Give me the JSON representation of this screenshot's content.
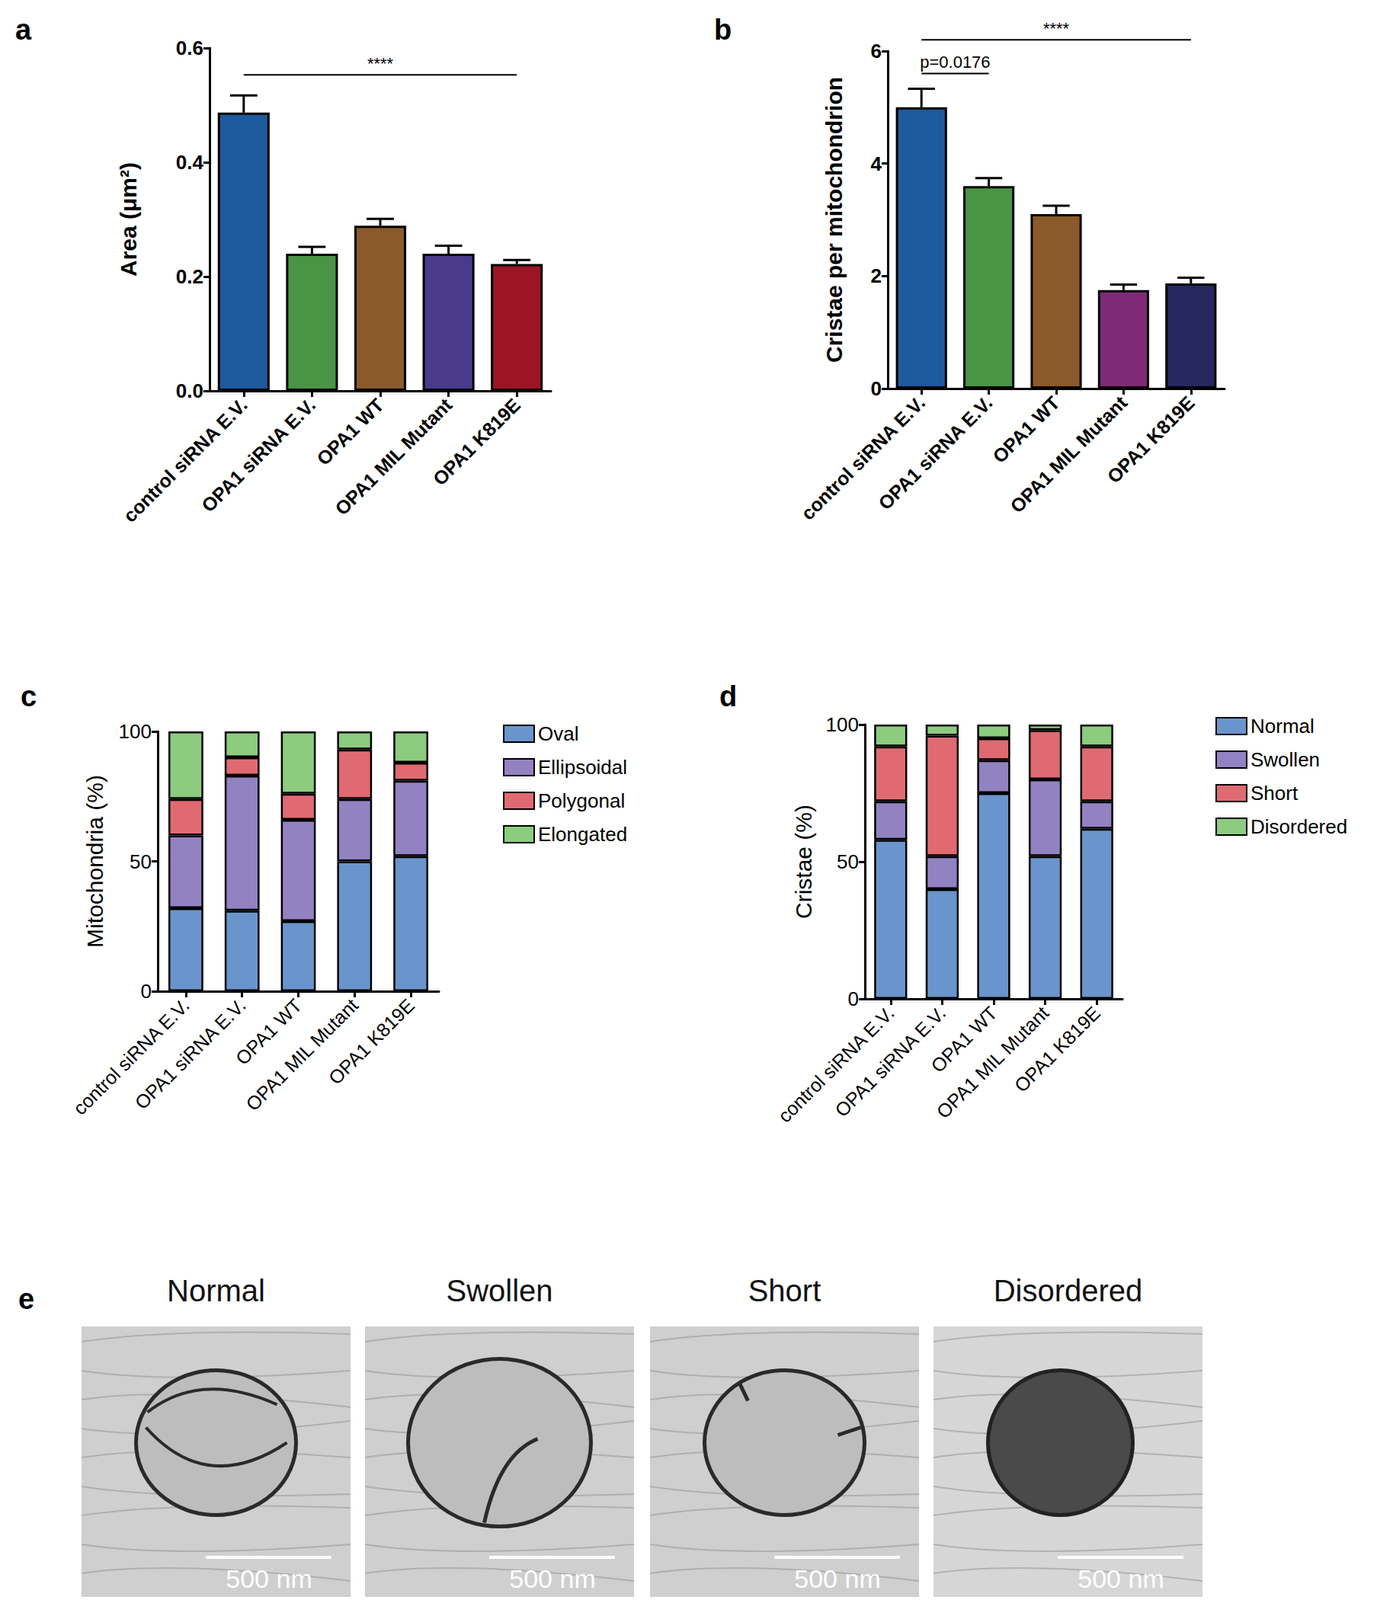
{
  "chart_data": [
    {
      "panel": "a",
      "type": "bar",
      "categories": [
        "control siRNA E.V.",
        "OPA1 siRNA E.V.",
        "OPA1 WT",
        "OPA1 MIL Mutant",
        "OPA1 K819E"
      ],
      "values": [
        0.487,
        0.24,
        0.289,
        0.24,
        0.222
      ],
      "errors": [
        0.03,
        0.012,
        0.012,
        0.014,
        0.007
      ],
      "colors": [
        "#1f5a9e",
        "#4a9445",
        "#8b5a2b",
        "#4a3a8c",
        "#9c1525"
      ],
      "ylabel": "Area (μm²)",
      "ylim": [
        0,
        0.6
      ],
      "yticks": [
        {
          "value": 0,
          "label": "0.0"
        },
        0.2,
        0.4,
        0.6
      ],
      "annotations": [
        {
          "text": "****",
          "from": "control siRNA E.V.",
          "to": "OPA1 K819E",
          "y": 0.553
        }
      ]
    },
    {
      "panel": "b",
      "type": "bar",
      "categories": [
        "control siRNA E.V.",
        "OPA1 siRNA E.V.",
        "OPA1 WT",
        "OPA1 MIL Mutant",
        "OPA1 K819E"
      ],
      "values": [
        5.0,
        3.6,
        3.1,
        1.75,
        1.87
      ],
      "errors": [
        0.33,
        0.14,
        0.15,
        0.1,
        0.1
      ],
      "colors": [
        "#1f5a9e",
        "#4a9445",
        "#8b5a2b",
        "#7f2a78",
        "#27285e"
      ],
      "ylabel": "Cristae per mitochondrion",
      "ylim": [
        0,
        6
      ],
      "yticks": [
        0,
        2,
        4,
        6
      ],
      "annotations": [
        {
          "text": "p=0.0176",
          "from": "control siRNA E.V.",
          "to": "OPA1 siRNA E.V.",
          "y": 5.6
        },
        {
          "text": "****",
          "from": "control siRNA E.V.",
          "to": "OPA1 K819E",
          "y": 6.2
        }
      ]
    },
    {
      "panel": "c",
      "type": "bar",
      "stacked": true,
      "legend": "right",
      "categories": [
        "control siRNA E.V.",
        "OPA1 siRNA E.V.",
        "OPA1 WT",
        "OPA1 MIL Mutant",
        "OPA1 K819E"
      ],
      "series": [
        {
          "name": "Oval",
          "color": "#6a95cc",
          "values": [
            32,
            31,
            27,
            50,
            52
          ]
        },
        {
          "name": "Ellipsoidal",
          "color": "#9282c2",
          "values": [
            28,
            52,
            39,
            24,
            29
          ]
        },
        {
          "name": "Polygonal",
          "color": "#e06a72",
          "values": [
            14,
            7,
            10,
            19,
            7
          ]
        },
        {
          "name": "Elongated",
          "color": "#8ccc7e",
          "values": [
            26,
            10,
            24,
            7,
            12
          ]
        }
      ],
      "ylabel": "Mitochondria (%)",
      "ylim": [
        0,
        100
      ],
      "yticks": [
        0,
        50,
        100
      ]
    },
    {
      "panel": "d",
      "type": "bar",
      "stacked": true,
      "legend": "right",
      "categories": [
        "control siRNA E.V.",
        "OPA1 siRNA E.V.",
        "OPA1 WT",
        "OPA1 MIL Mutant",
        "OPA1 K819E"
      ],
      "series": [
        {
          "name": "Normal",
          "color": "#6a95cc",
          "values": [
            58,
            40,
            75,
            52,
            62
          ]
        },
        {
          "name": "Swollen",
          "color": "#9282c2",
          "values": [
            14,
            12,
            12,
            28,
            10
          ]
        },
        {
          "name": "Short",
          "color": "#e06a72",
          "values": [
            20,
            44,
            8,
            18,
            20
          ]
        },
        {
          "name": "Disordered",
          "color": "#8ccc7e",
          "values": [
            8,
            4,
            5,
            2,
            8
          ]
        }
      ],
      "ylabel": "Cristae (%)",
      "ylim": [
        0,
        100
      ],
      "yticks": [
        0,
        50,
        100
      ]
    }
  ],
  "images": {
    "panel": "e",
    "items": [
      {
        "title": "Normal",
        "scale_bar": "500 nm"
      },
      {
        "title": "Swollen",
        "scale_bar": "500 nm"
      },
      {
        "title": "Short",
        "scale_bar": "500 nm"
      },
      {
        "title": "Disordered",
        "scale_bar": "500 nm"
      }
    ]
  }
}
